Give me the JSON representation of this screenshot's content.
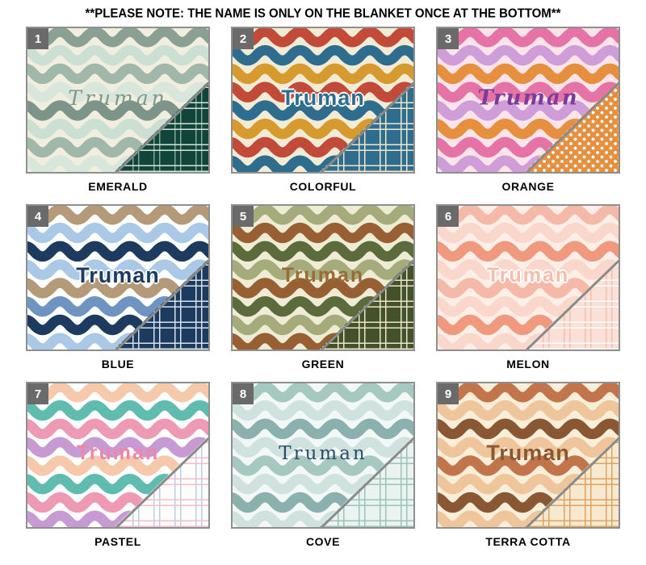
{
  "note": "**PLEASE NOTE: THE NAME IS ONLY ON THE BLANKET ONCE AT THE BOTTOM**",
  "personalization_name": "Truman",
  "swatches": [
    {
      "number": "1",
      "label": "EMERALD",
      "bg": "#f1eedf",
      "name_color": "#7e978a",
      "name_style": "script",
      "name_halo": false,
      "waves": [
        "#8aa093",
        "#ccdfd3",
        "#9fb8a9",
        "#d8e6db",
        "#7c958a",
        "#ccdfd3",
        "#9fb8a9",
        "#d8e6db"
      ],
      "corner": {
        "type": "plaid",
        "base": "#11453c",
        "line": "#d5e4d6",
        "line2": "#7fa896"
      }
    },
    {
      "number": "2",
      "label": "COLORFUL",
      "bg": "#f2ecd7",
      "name_color": "#2e6d8e",
      "name_style": "bold",
      "name_halo": true,
      "waves": [
        "#c14b38",
        "#2e6d8e",
        "#d79a2e",
        "#c14b38",
        "#2e6d8e",
        "#d79a2e",
        "#c14b38",
        "#2e6d8e"
      ],
      "corner": {
        "type": "plaid",
        "base": "#2e6d8e",
        "line": "#efe6cb"
      }
    },
    {
      "number": "3",
      "label": "ORANGE",
      "bg": "#fce4ea",
      "name_color": "#7c3d99",
      "name_style": "script-bold",
      "name_halo": false,
      "waves": [
        "#e673a5",
        "#cf9ed8",
        "#e6903f",
        "#e673a5",
        "#cf9ed8",
        "#e6903f",
        "#e673a5",
        "#cf9ed8"
      ],
      "corner": {
        "type": "dots",
        "base": "#e6903f",
        "line": "#ffffff"
      }
    },
    {
      "number": "4",
      "label": "BLUE",
      "bg": "#ffffff",
      "name_color": "#1d3a5f",
      "name_style": "bold",
      "name_halo": true,
      "waves": [
        "#b49a78",
        "#a9c9e6",
        "#1d3a5f",
        "#a9c9e6",
        "#b49a78",
        "#6e94c1",
        "#1d3a5f",
        "#a9c9e6"
      ],
      "corner": {
        "type": "plaid",
        "base": "#1d3a5f",
        "line": "#d8e2ee"
      }
    },
    {
      "number": "5",
      "label": "GREEN",
      "bg": "#efecd6",
      "name_color": "#9a6a37",
      "name_style": "rounded",
      "name_halo": false,
      "waves": [
        "#a6ab7c",
        "#975f32",
        "#5c6b3c",
        "#a6ab7c",
        "#975f32",
        "#5c6b3c",
        "#a6ab7c",
        "#975f32"
      ],
      "corner": {
        "type": "plaid",
        "base": "#44522c",
        "line": "#e9e5c9"
      }
    },
    {
      "number": "6",
      "label": "MELON",
      "bg": "#fdeee8",
      "name_color": "#f7bcab",
      "name_style": "rounded",
      "name_halo": true,
      "waves": [
        "#f5b9a7",
        "#fad7cb",
        "#f1997f",
        "#fad7cb",
        "#f5b9a7",
        "#fad7cb",
        "#f1997f",
        "#fad7cb"
      ],
      "corner": {
        "type": "plaid",
        "base": "#fae0d7",
        "line": "#ffffff",
        "line2": "#f3c0ae"
      }
    },
    {
      "number": "7",
      "label": "PASTEL",
      "bg": "#ffffff",
      "name_color": "#ee87a5",
      "name_style": "rounded",
      "name_halo": false,
      "waves": [
        "#f6c9ab",
        "#5fbcae",
        "#ef9ab5",
        "#c79ad3",
        "#f6c9ab",
        "#5fbcae",
        "#ef9ab5",
        "#c79ad3"
      ],
      "corner": {
        "type": "plaid",
        "base": "#fffdfc",
        "line": "#f3bccb",
        "line2": "#b9cfe6"
      }
    },
    {
      "number": "8",
      "label": "COVE",
      "bg": "#f3f8f6",
      "name_color": "#2c4a6e",
      "name_style": "serif",
      "name_halo": false,
      "waves": [
        "#a5c8c1",
        "#cfe2de",
        "#8bb1ae",
        "#cfe2de",
        "#a5c8c1",
        "#cfe2de",
        "#8bb1ae",
        "#cfe2de"
      ],
      "corner": {
        "type": "plaid",
        "base": "#eaf3f0",
        "line": "#9cc3ba"
      }
    },
    {
      "number": "9",
      "label": "TERRA COTTA",
      "bg": "#f8eed9",
      "name_color": "#8a5733",
      "name_style": "bold",
      "name_halo": false,
      "waves": [
        "#c2744a",
        "#efc69c",
        "#8a5733",
        "#efc69c",
        "#c2744a",
        "#efc69c",
        "#8a5733",
        "#efc69c"
      ],
      "corner": {
        "type": "plaid",
        "base": "#f6e9d0",
        "line": "#dda35f"
      }
    }
  ]
}
